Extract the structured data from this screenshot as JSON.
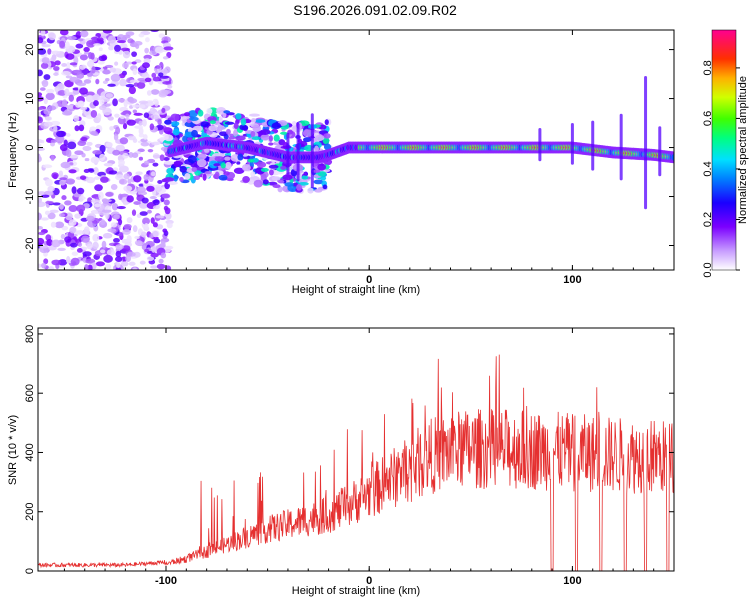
{
  "title": "S196.2026.091.02.09.R02",
  "colors": {
    "snr_line": "#e53030",
    "axis": "#000000",
    "colormap": [
      "#ffffff",
      "#7b00ff",
      "#0000ff",
      "#00ffff",
      "#00ff00",
      "#ffff00",
      "#ff0000",
      "#ff00aa"
    ]
  },
  "chart_data": [
    {
      "type": "heatmap",
      "title": "",
      "xlabel": "Height of straight line (km)",
      "ylabel": "Frequency (Hz)",
      "xlim": [
        -163,
        150
      ],
      "ylim": [
        -25,
        24
      ],
      "xticks": [
        -100,
        0,
        100
      ],
      "xtick_labels": [
        "-100",
        "0",
        "100"
      ],
      "yticks": [
        -20,
        -10,
        0,
        10,
        20
      ],
      "ytick_labels": [
        "-20",
        "-10",
        "0",
        "10",
        "20"
      ],
      "colorbar": {
        "label": "Normalized spectral amplitude",
        "range": [
          0,
          0.95
        ],
        "ticks": [
          0,
          0.2,
          0.4,
          0.6,
          0.8
        ],
        "tick_labels": [
          "0.0",
          "0.2",
          "0.4",
          "0.6",
          "0.8"
        ]
      },
      "ridge": {
        "description": "Dominant spectral ridge near 0 Hz",
        "points": [
          [
            -100,
            -1
          ],
          [
            -90,
            0
          ],
          [
            -80,
            1
          ],
          [
            -60,
            0
          ],
          [
            -40,
            -2
          ],
          [
            -25,
            -2
          ],
          [
            -20,
            -1.5
          ],
          [
            -10,
            0
          ],
          [
            0,
            0
          ],
          [
            20,
            0
          ],
          [
            50,
            0
          ],
          [
            80,
            0
          ],
          [
            100,
            0
          ],
          [
            120,
            -1
          ],
          [
            140,
            -1.5
          ],
          [
            150,
            -2
          ]
        ]
      }
    },
    {
      "type": "line",
      "title": "",
      "xlabel": "Height of straight line (km)",
      "ylabel": "SNR (10 * v/v)",
      "xlim": [
        -163,
        150
      ],
      "ylim": [
        0,
        820
      ],
      "xticks": [
        -100,
        0,
        100
      ],
      "xtick_labels": [
        "-100",
        "0",
        "100"
      ],
      "yticks": [
        0,
        200,
        400,
        600,
        800
      ],
      "ytick_labels": [
        "0",
        "200",
        "400",
        "600",
        "800"
      ],
      "series": [
        {
          "name": "SNR",
          "envelope_x": [
            -163,
            -120,
            -100,
            -90,
            -80,
            -70,
            -60,
            -50,
            -40,
            -30,
            -20,
            -10,
            0,
            10,
            20,
            30,
            40,
            50,
            60,
            70,
            80,
            90,
            100,
            110,
            120,
            130,
            140,
            150
          ],
          "envelope_y": [
            20,
            20,
            30,
            50,
            80,
            110,
            140,
            170,
            190,
            210,
            230,
            270,
            320,
            370,
            420,
            470,
            490,
            500,
            500,
            500,
            495,
            490,
            485,
            480,
            475,
            470,
            470,
            460
          ],
          "dropouts_x": [
            90,
            102,
            114,
            126,
            136,
            147
          ]
        }
      ]
    }
  ]
}
